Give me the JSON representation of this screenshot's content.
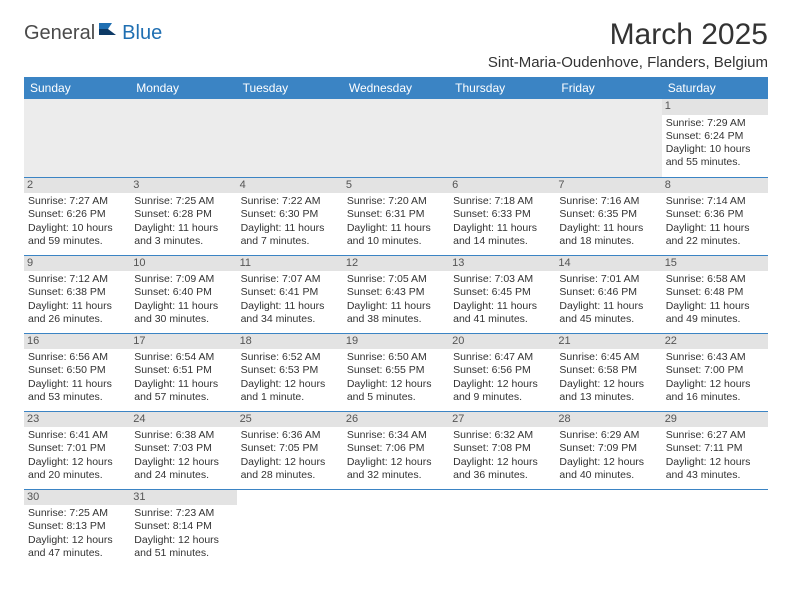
{
  "logo": {
    "part1": "General",
    "part2": "Blue"
  },
  "title": "March 2025",
  "location": "Sint-Maria-Oudenhove, Flanders, Belgium",
  "colors": {
    "header_bg": "#3b84c4",
    "header_text": "#ffffff",
    "row_border": "#3b84c4",
    "daynum_bg": "#e3e3e3",
    "row_alt_bg": "#f4f4f4",
    "body_text": "#333333",
    "logo_gray": "#4a4a4a",
    "logo_blue": "#1f6fb2"
  },
  "weekdays": [
    "Sunday",
    "Monday",
    "Tuesday",
    "Wednesday",
    "Thursday",
    "Friday",
    "Saturday"
  ],
  "weeks": [
    [
      null,
      null,
      null,
      null,
      null,
      null,
      {
        "n": "1",
        "sr": "Sunrise: 7:29 AM",
        "ss": "Sunset: 6:24 PM",
        "d1": "Daylight: 10 hours",
        "d2": "and 55 minutes."
      }
    ],
    [
      {
        "n": "2",
        "sr": "Sunrise: 7:27 AM",
        "ss": "Sunset: 6:26 PM",
        "d1": "Daylight: 10 hours",
        "d2": "and 59 minutes."
      },
      {
        "n": "3",
        "sr": "Sunrise: 7:25 AM",
        "ss": "Sunset: 6:28 PM",
        "d1": "Daylight: 11 hours",
        "d2": "and 3 minutes."
      },
      {
        "n": "4",
        "sr": "Sunrise: 7:22 AM",
        "ss": "Sunset: 6:30 PM",
        "d1": "Daylight: 11 hours",
        "d2": "and 7 minutes."
      },
      {
        "n": "5",
        "sr": "Sunrise: 7:20 AM",
        "ss": "Sunset: 6:31 PM",
        "d1": "Daylight: 11 hours",
        "d2": "and 10 minutes."
      },
      {
        "n": "6",
        "sr": "Sunrise: 7:18 AM",
        "ss": "Sunset: 6:33 PM",
        "d1": "Daylight: 11 hours",
        "d2": "and 14 minutes."
      },
      {
        "n": "7",
        "sr": "Sunrise: 7:16 AM",
        "ss": "Sunset: 6:35 PM",
        "d1": "Daylight: 11 hours",
        "d2": "and 18 minutes."
      },
      {
        "n": "8",
        "sr": "Sunrise: 7:14 AM",
        "ss": "Sunset: 6:36 PM",
        "d1": "Daylight: 11 hours",
        "d2": "and 22 minutes."
      }
    ],
    [
      {
        "n": "9",
        "sr": "Sunrise: 7:12 AM",
        "ss": "Sunset: 6:38 PM",
        "d1": "Daylight: 11 hours",
        "d2": "and 26 minutes."
      },
      {
        "n": "10",
        "sr": "Sunrise: 7:09 AM",
        "ss": "Sunset: 6:40 PM",
        "d1": "Daylight: 11 hours",
        "d2": "and 30 minutes."
      },
      {
        "n": "11",
        "sr": "Sunrise: 7:07 AM",
        "ss": "Sunset: 6:41 PM",
        "d1": "Daylight: 11 hours",
        "d2": "and 34 minutes."
      },
      {
        "n": "12",
        "sr": "Sunrise: 7:05 AM",
        "ss": "Sunset: 6:43 PM",
        "d1": "Daylight: 11 hours",
        "d2": "and 38 minutes."
      },
      {
        "n": "13",
        "sr": "Sunrise: 7:03 AM",
        "ss": "Sunset: 6:45 PM",
        "d1": "Daylight: 11 hours",
        "d2": "and 41 minutes."
      },
      {
        "n": "14",
        "sr": "Sunrise: 7:01 AM",
        "ss": "Sunset: 6:46 PM",
        "d1": "Daylight: 11 hours",
        "d2": "and 45 minutes."
      },
      {
        "n": "15",
        "sr": "Sunrise: 6:58 AM",
        "ss": "Sunset: 6:48 PM",
        "d1": "Daylight: 11 hours",
        "d2": "and 49 minutes."
      }
    ],
    [
      {
        "n": "16",
        "sr": "Sunrise: 6:56 AM",
        "ss": "Sunset: 6:50 PM",
        "d1": "Daylight: 11 hours",
        "d2": "and 53 minutes."
      },
      {
        "n": "17",
        "sr": "Sunrise: 6:54 AM",
        "ss": "Sunset: 6:51 PM",
        "d1": "Daylight: 11 hours",
        "d2": "and 57 minutes."
      },
      {
        "n": "18",
        "sr": "Sunrise: 6:52 AM",
        "ss": "Sunset: 6:53 PM",
        "d1": "Daylight: 12 hours",
        "d2": "and 1 minute."
      },
      {
        "n": "19",
        "sr": "Sunrise: 6:50 AM",
        "ss": "Sunset: 6:55 PM",
        "d1": "Daylight: 12 hours",
        "d2": "and 5 minutes."
      },
      {
        "n": "20",
        "sr": "Sunrise: 6:47 AM",
        "ss": "Sunset: 6:56 PM",
        "d1": "Daylight: 12 hours",
        "d2": "and 9 minutes."
      },
      {
        "n": "21",
        "sr": "Sunrise: 6:45 AM",
        "ss": "Sunset: 6:58 PM",
        "d1": "Daylight: 12 hours",
        "d2": "and 13 minutes."
      },
      {
        "n": "22",
        "sr": "Sunrise: 6:43 AM",
        "ss": "Sunset: 7:00 PM",
        "d1": "Daylight: 12 hours",
        "d2": "and 16 minutes."
      }
    ],
    [
      {
        "n": "23",
        "sr": "Sunrise: 6:41 AM",
        "ss": "Sunset: 7:01 PM",
        "d1": "Daylight: 12 hours",
        "d2": "and 20 minutes."
      },
      {
        "n": "24",
        "sr": "Sunrise: 6:38 AM",
        "ss": "Sunset: 7:03 PM",
        "d1": "Daylight: 12 hours",
        "d2": "and 24 minutes."
      },
      {
        "n": "25",
        "sr": "Sunrise: 6:36 AM",
        "ss": "Sunset: 7:05 PM",
        "d1": "Daylight: 12 hours",
        "d2": "and 28 minutes."
      },
      {
        "n": "26",
        "sr": "Sunrise: 6:34 AM",
        "ss": "Sunset: 7:06 PM",
        "d1": "Daylight: 12 hours",
        "d2": "and 32 minutes."
      },
      {
        "n": "27",
        "sr": "Sunrise: 6:32 AM",
        "ss": "Sunset: 7:08 PM",
        "d1": "Daylight: 12 hours",
        "d2": "and 36 minutes."
      },
      {
        "n": "28",
        "sr": "Sunrise: 6:29 AM",
        "ss": "Sunset: 7:09 PM",
        "d1": "Daylight: 12 hours",
        "d2": "and 40 minutes."
      },
      {
        "n": "29",
        "sr": "Sunrise: 6:27 AM",
        "ss": "Sunset: 7:11 PM",
        "d1": "Daylight: 12 hours",
        "d2": "and 43 minutes."
      }
    ],
    [
      {
        "n": "30",
        "sr": "Sunrise: 7:25 AM",
        "ss": "Sunset: 8:13 PM",
        "d1": "Daylight: 12 hours",
        "d2": "and 47 minutes."
      },
      {
        "n": "31",
        "sr": "Sunrise: 7:23 AM",
        "ss": "Sunset: 8:14 PM",
        "d1": "Daylight: 12 hours",
        "d2": "and 51 minutes."
      },
      null,
      null,
      null,
      null,
      null
    ]
  ]
}
